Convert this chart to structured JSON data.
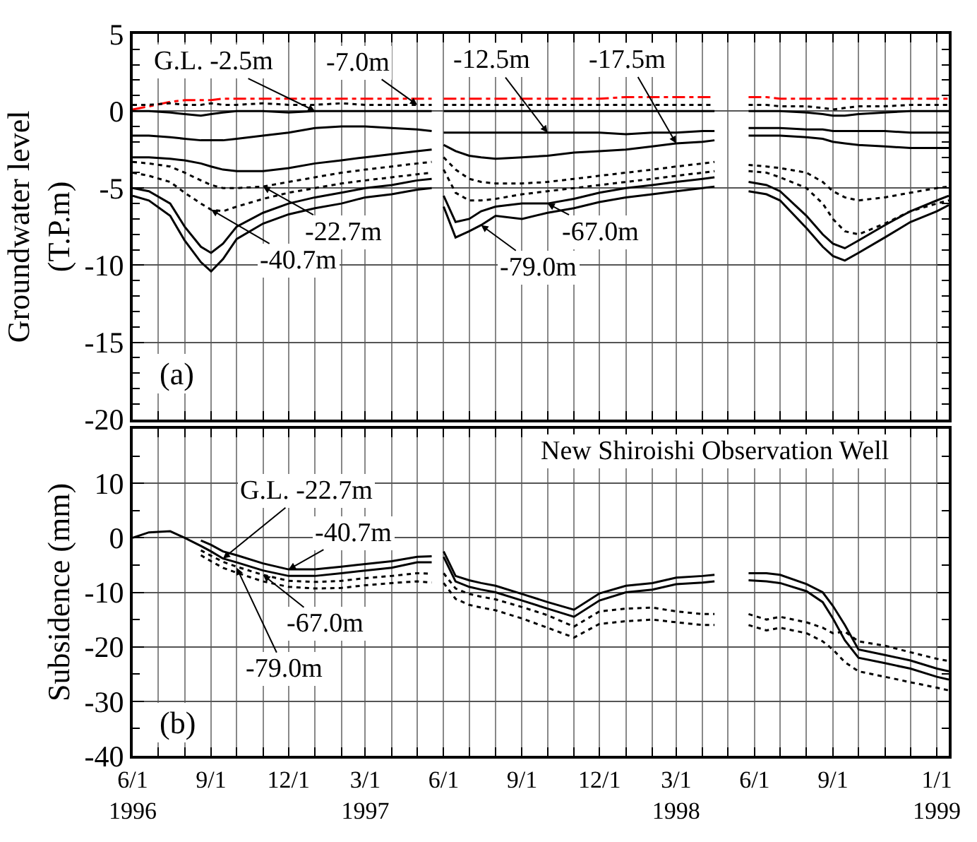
{
  "chart_data": [
    {
      "type": "line",
      "ylabel": "Groundwater level\n(T.P.m)",
      "xlim": [
        "1996-06-01",
        "1999-01-15"
      ],
      "ylim": [
        -20,
        5
      ],
      "yticks": [
        -20,
        -15,
        -10,
        -5,
        0,
        5
      ],
      "grid": true,
      "tick_labels": "y",
      "xticks": [
        {
          "value": "1996-06-01",
          "label": null
        },
        {
          "value": "1996-07-01",
          "label": null
        },
        {
          "value": "1996-08-01",
          "label": null
        },
        {
          "value": "1996-09-01",
          "label": null
        },
        {
          "value": "1996-10-01",
          "label": null
        },
        {
          "value": "1996-11-01",
          "label": null
        },
        {
          "value": "1996-12-01",
          "label": null
        },
        {
          "value": "1997-01-01",
          "label": null
        },
        {
          "value": "1997-02-01",
          "label": null
        },
        {
          "value": "1997-03-01",
          "label": null
        },
        {
          "value": "1997-04-01",
          "label": null
        },
        {
          "value": "1997-05-01",
          "label": null
        },
        {
          "value": "1997-06-01",
          "label": null
        },
        {
          "value": "1997-07-01",
          "label": null
        },
        {
          "value": "1997-08-01",
          "label": null
        },
        {
          "value": "1997-09-01",
          "label": null
        },
        {
          "value": "1997-10-01",
          "label": null
        },
        {
          "value": "1997-11-01",
          "label": null
        },
        {
          "value": "1997-12-01",
          "label": null
        },
        {
          "value": "1998-01-01",
          "label": null
        },
        {
          "value": "1998-02-01",
          "label": null
        },
        {
          "value": "1998-03-01",
          "label": null
        },
        {
          "value": "1998-04-01",
          "label": null
        },
        {
          "value": "1998-05-01",
          "label": null
        },
        {
          "value": "1998-06-01",
          "label": null
        },
        {
          "value": "1998-07-01",
          "label": null
        },
        {
          "value": "1998-08-01",
          "label": null
        },
        {
          "value": "1998-09-01",
          "label": null
        },
        {
          "value": "1998-10-01",
          "label": null
        },
        {
          "value": "1998-11-01",
          "label": null
        },
        {
          "value": "1998-12-01",
          "label": null
        },
        {
          "value": "1999-01-01",
          "label": null
        }
      ],
      "x": [
        "1996-06-01",
        "1996-06-20",
        "1996-07-15",
        "1996-08-01",
        "1996-08-20",
        "1996-09-01",
        "1996-09-15",
        "1996-10-01",
        "1996-11-01",
        "1996-12-01",
        "1997-01-01",
        "1997-02-01",
        "1997-03-01",
        "1997-04-01",
        "1997-05-01",
        "1997-05-18",
        "1997-05-25",
        "1997-06-01",
        "1997-06-15",
        "1997-07-01",
        "1997-07-15",
        "1997-08-01",
        "1997-09-01",
        "1997-10-01",
        "1997-11-01",
        "1997-12-01",
        "1998-01-01",
        "1998-02-01",
        "1998-03-01",
        "1998-04-01",
        "1998-04-15",
        "1998-05-10",
        "1998-05-25",
        "1998-06-15",
        "1998-07-01",
        "1998-08-01",
        "1998-08-20",
        "1998-09-01",
        "1998-09-15",
        "1998-10-01",
        "1998-11-01",
        "1998-12-01",
        "1999-01-01",
        "1999-01-15"
      ],
      "series": [
        {
          "color": "#ff0000",
          "line_style": "dashed",
          "values": [
            0.1,
            0.3,
            0.6,
            0.7,
            0.7,
            0.7,
            0.8,
            0.8,
            0.8,
            0.8,
            0.8,
            0.8,
            0.8,
            0.8,
            0.8,
            0.8,
            null,
            0.8,
            0.8,
            0.8,
            0.8,
            0.8,
            0.8,
            0.8,
            0.8,
            0.8,
            0.9,
            0.9,
            0.9,
            0.9,
            0.9,
            null,
            0.9,
            0.9,
            0.8,
            0.8,
            0.8,
            0.8,
            0.8,
            0.8,
            0.8,
            0.8,
            0.8,
            0.8
          ]
        },
        {
          "color": "#000000",
          "line_style": "solid",
          "values": [
            0.0,
            0.0,
            -0.1,
            -0.2,
            -0.3,
            -0.2,
            -0.1,
            0.0,
            0.0,
            -0.1,
            0.0,
            0.0,
            0.0,
            0.0,
            0.0,
            0.0,
            null,
            0.0,
            0.0,
            0.0,
            0.0,
            0.0,
            0.0,
            0.0,
            0.0,
            0.0,
            0.0,
            0.0,
            0.0,
            0.0,
            0.0,
            null,
            0.0,
            0.0,
            0.0,
            -0.1,
            -0.2,
            -0.3,
            -0.3,
            -0.2,
            -0.1,
            0.0,
            0.0,
            0.0
          ]
        },
        {
          "color": "#000000",
          "line_style": "dotted",
          "values": [
            0.4,
            0.4,
            0.5,
            0.4,
            0.4,
            0.5,
            0.4,
            0.4,
            0.5,
            0.4,
            0.4,
            0.5,
            0.4,
            0.4,
            0.4,
            0.4,
            null,
            0.4,
            0.4,
            0.4,
            0.4,
            0.4,
            0.4,
            0.4,
            0.4,
            0.4,
            0.4,
            0.4,
            0.4,
            0.4,
            0.4,
            null,
            0.4,
            0.4,
            0.3,
            0.3,
            0.2,
            0.1,
            0.2,
            0.3,
            0.3,
            0.4,
            0.4,
            0.4
          ]
        },
        {
          "color": "#000000",
          "line_style": "solid",
          "values": [
            -1.6,
            -1.6,
            -1.7,
            -1.8,
            -1.9,
            -1.9,
            -1.9,
            -1.8,
            -1.6,
            -1.4,
            -1.1,
            -1.0,
            -1.0,
            -1.1,
            -1.2,
            -1.3,
            null,
            -1.4,
            -1.4,
            -1.4,
            -1.4,
            -1.4,
            -1.4,
            -1.4,
            -1.4,
            -1.4,
            -1.5,
            -1.4,
            -1.4,
            -1.3,
            -1.3,
            null,
            -1.1,
            -1.1,
            -1.1,
            -1.2,
            -1.2,
            -1.3,
            -1.3,
            -1.3,
            -1.3,
            -1.4,
            -1.4,
            -1.4
          ]
        },
        {
          "color": "#000000",
          "line_style": "solid",
          "values": [
            -3.0,
            -3.0,
            -3.1,
            -3.2,
            -3.4,
            -3.6,
            -3.8,
            -3.9,
            -3.9,
            -3.7,
            -3.4,
            -3.2,
            -3.0,
            -2.8,
            -2.6,
            -2.5,
            null,
            -2.2,
            -2.6,
            -2.9,
            -3.0,
            -3.1,
            -3.0,
            -2.9,
            -2.7,
            -2.6,
            -2.5,
            -2.3,
            -2.1,
            -2.0,
            -1.9,
            null,
            -1.6,
            -1.6,
            -1.6,
            -1.7,
            -1.8,
            -2.0,
            -2.1,
            -2.2,
            -2.3,
            -2.4,
            -2.4,
            -2.4
          ]
        },
        {
          "color": "#000000",
          "line_style": "dotted",
          "values": [
            -3.3,
            -3.4,
            -3.6,
            -4.0,
            -4.5,
            -4.8,
            -5.0,
            -5.0,
            -4.9,
            -4.6,
            -4.3,
            -4.0,
            -3.8,
            -3.6,
            -3.4,
            -3.3,
            null,
            -3.0,
            -3.8,
            -4.4,
            -4.6,
            -4.7,
            -4.7,
            -4.6,
            -4.4,
            -4.2,
            -4.0,
            -3.8,
            -3.6,
            -3.4,
            -3.3,
            null,
            -3.5,
            -3.6,
            -3.7,
            -4.0,
            -4.6,
            -5.2,
            -5.6,
            -5.8,
            -5.6,
            -5.3,
            -5.0,
            -4.9
          ]
        },
        {
          "color": "#000000",
          "line_style": "dotted",
          "values": [
            -4.0,
            -4.2,
            -4.6,
            -5.3,
            -6.0,
            -6.4,
            -6.5,
            -6.2,
            -5.7,
            -5.3,
            -5.0,
            -4.7,
            -4.5,
            -4.3,
            -4.1,
            -4.0,
            null,
            -3.8,
            -5.3,
            -5.8,
            -5.8,
            -5.7,
            -5.4,
            -5.2,
            -5.0,
            -4.8,
            -4.6,
            -4.4,
            -4.2,
            -4.0,
            -3.9,
            null,
            -3.9,
            -4.0,
            -4.3,
            -5.0,
            -6.0,
            -7.0,
            -7.8,
            -8.0,
            -7.3,
            -6.5,
            -6.0,
            -5.8
          ]
        },
        {
          "color": "#000000",
          "line_style": "solid",
          "values": [
            -5.0,
            -5.2,
            -6.0,
            -7.5,
            -8.8,
            -9.2,
            -8.6,
            -7.5,
            -6.6,
            -6.0,
            -5.6,
            -5.3,
            -5.0,
            -4.8,
            -4.5,
            -4.4,
            null,
            -5.5,
            -7.2,
            -7.0,
            -6.5,
            -6.2,
            -6.0,
            -6.0,
            -5.7,
            -5.3,
            -5.0,
            -4.8,
            -4.6,
            -4.4,
            -4.3,
            null,
            -4.6,
            -4.8,
            -5.2,
            -6.8,
            -8.0,
            -8.6,
            -8.9,
            -8.4,
            -7.4,
            -6.5,
            -5.8,
            -5.5
          ]
        },
        {
          "color": "#000000",
          "line_style": "solid",
          "values": [
            -5.5,
            -5.8,
            -6.8,
            -8.4,
            -9.8,
            -10.4,
            -9.6,
            -8.3,
            -7.3,
            -6.7,
            -6.3,
            -6.0,
            -5.6,
            -5.4,
            -5.1,
            -5.0,
            null,
            -6.2,
            -8.2,
            -7.8,
            -7.4,
            -6.8,
            -7.0,
            -6.6,
            -6.3,
            -5.9,
            -5.6,
            -5.4,
            -5.2,
            -5.0,
            -4.9,
            null,
            -5.2,
            -5.4,
            -5.8,
            -7.6,
            -8.8,
            -9.4,
            -9.7,
            -9.2,
            -8.2,
            -7.2,
            -6.5,
            -6.1
          ]
        }
      ],
      "annotations": [
        {
          "text": "G.L. -2.5m",
          "x": "1997-01-01",
          "y": 0.0
        },
        {
          "text": "-7.0m",
          "x": "1997-05-01",
          "y": 0.4
        },
        {
          "text": "-12.5m",
          "x": "1997-10-01",
          "y": -1.4
        },
        {
          "text": "-17.5m",
          "x": "1998-03-01",
          "y": -2.1
        },
        {
          "text": "-22.7m",
          "x": "1996-11-01",
          "y": -4.9
        },
        {
          "text": "-40.7m",
          "x": "1996-09-01",
          "y": -6.4
        },
        {
          "text": "-67.0m",
          "x": "1997-10-01",
          "y": -6.0
        },
        {
          "text": "-79.0m",
          "x": "1997-07-15",
          "y": -7.4
        },
        "(a)"
      ]
    },
    {
      "type": "line",
      "ylabel": "Subsidence (mm)",
      "xlim": [
        "1996-06-01",
        "1999-01-15"
      ],
      "ylim": [
        -40,
        20
      ],
      "yticks": [
        -40,
        -30,
        -20,
        -10,
        0,
        10,
        {
          "value": 20,
          "label": null
        }
      ],
      "grid": true,
      "xticks": [
        {
          "value": "1996-06-01",
          "label": "6/1\n1996"
        },
        {
          "value": "1996-07-01",
          "label": null
        },
        {
          "value": "1996-08-01",
          "label": null
        },
        {
          "value": "1996-09-01",
          "label": "9/1"
        },
        {
          "value": "1996-10-01",
          "label": null
        },
        {
          "value": "1996-11-01",
          "label": null
        },
        {
          "value": "1996-12-01",
          "label": "12/1"
        },
        {
          "value": "1997-01-01",
          "label": null
        },
        {
          "value": "1997-02-01",
          "label": null
        },
        {
          "value": "1997-03-01",
          "label": "3/1\n1997"
        },
        {
          "value": "1997-04-01",
          "label": null
        },
        {
          "value": "1997-05-01",
          "label": null
        },
        {
          "value": "1997-06-01",
          "label": "6/1"
        },
        {
          "value": "1997-07-01",
          "label": null
        },
        {
          "value": "1997-08-01",
          "label": null
        },
        {
          "value": "1997-09-01",
          "label": "9/1"
        },
        {
          "value": "1997-10-01",
          "label": null
        },
        {
          "value": "1997-11-01",
          "label": null
        },
        {
          "value": "1997-12-01",
          "label": "12/1"
        },
        {
          "value": "1998-01-01",
          "label": null
        },
        {
          "value": "1998-02-01",
          "label": null
        },
        {
          "value": "1998-03-01",
          "label": "3/1\n1998"
        },
        {
          "value": "1998-04-01",
          "label": null
        },
        {
          "value": "1998-05-01",
          "label": null
        },
        {
          "value": "1998-06-01",
          "label": "6/1"
        },
        {
          "value": "1998-07-01",
          "label": null
        },
        {
          "value": "1998-08-01",
          "label": null
        },
        {
          "value": "1998-09-01",
          "label": "9/1"
        },
        {
          "value": "1998-10-01",
          "label": null
        },
        {
          "value": "1998-11-01",
          "label": null
        },
        {
          "value": "1998-12-01",
          "label": null
        },
        {
          "value": "1999-01-01",
          "label": "1/1\n1999"
        }
      ],
      "x": [
        "1996-06-01",
        "1996-06-20",
        "1996-07-15",
        "1996-08-01",
        "1996-08-20",
        "1996-09-01",
        "1996-09-15",
        "1996-10-01",
        "1996-11-01",
        "1996-12-01",
        "1997-01-01",
        "1997-02-01",
        "1997-03-01",
        "1997-04-01",
        "1997-05-01",
        "1997-05-18",
        "1997-05-25",
        "1997-06-01",
        "1997-06-15",
        "1997-07-01",
        "1997-07-15",
        "1997-08-01",
        "1997-09-01",
        "1997-10-01",
        "1997-11-01",
        "1997-12-01",
        "1998-01-01",
        "1998-02-01",
        "1998-03-01",
        "1998-04-01",
        "1998-04-15",
        "1998-05-10",
        "1998-05-25",
        "1998-06-15",
        "1998-07-01",
        "1998-08-01",
        "1998-08-20",
        "1998-09-01",
        "1998-09-15",
        "1998-10-01",
        "1998-11-01",
        "1998-12-01",
        "1999-01-01",
        "1999-01-15"
      ],
      "series": [
        {
          "color": "#000000",
          "line_style": "solid",
          "values": [
            0,
            1.0,
            1.2,
            0.0,
            -1.5,
            -2.5,
            -3.8,
            -4.5,
            -6.0,
            -7.0,
            -7.0,
            -6.5,
            -6.0,
            -5.5,
            -4.5,
            -4.5,
            null,
            -3.5,
            -8.0,
            -9.0,
            -9.5,
            -10.0,
            -11.5,
            -13.0,
            -14.5,
            -11.5,
            -10.0,
            -9.5,
            -8.5,
            -8.2,
            -8.0,
            null,
            -6.5,
            -6.5,
            -6.8,
            -8.5,
            -10.0,
            -12.5,
            -16.0,
            -20.5,
            -21.5,
            -22.5,
            -24.0,
            -24.5
          ]
        },
        {
          "color": "#000000",
          "line_style": "solid",
          "values": [
            null,
            null,
            null,
            null,
            -0.5,
            -1.3,
            -2.5,
            -3.2,
            -4.7,
            -5.8,
            -5.8,
            -5.3,
            -4.8,
            -4.3,
            -3.5,
            -3.4,
            null,
            -2.5,
            -7.0,
            -7.8,
            -8.3,
            -8.8,
            -10.3,
            -11.8,
            -13.2,
            -10.2,
            -8.8,
            -8.3,
            -7.3,
            -7.0,
            -6.8,
            null,
            -7.8,
            -8.0,
            -8.3,
            -9.8,
            -11.8,
            -14.8,
            -18.8,
            -22.0,
            -23.0,
            -24.0,
            -25.5,
            -26.0
          ]
        },
        {
          "color": "#000000",
          "line_style": "dotted",
          "values": [
            null,
            null,
            null,
            null,
            -2.3,
            -3.3,
            -4.4,
            -5.3,
            -6.8,
            -7.9,
            -8.1,
            -7.9,
            -7.4,
            -7.0,
            -6.5,
            -6.6,
            null,
            -6.5,
            -9.3,
            -10.3,
            -10.8,
            -11.3,
            -12.7,
            -14.2,
            -16.3,
            -13.5,
            -13.0,
            -12.8,
            -13.5,
            -14.0,
            -14.0,
            null,
            -14.0,
            -15.0,
            -14.5,
            -15.5,
            -16.5,
            -17.5,
            -17.2,
            -19.0,
            -19.8,
            -21.0,
            -22.2,
            -22.6
          ]
        },
        {
          "color": "#000000",
          "line_style": "dotted",
          "values": [
            null,
            null,
            null,
            null,
            -3.2,
            -4.3,
            -5.5,
            -6.4,
            -8.0,
            -9.0,
            -9.3,
            -9.2,
            -8.7,
            -8.3,
            -8.0,
            -8.2,
            null,
            -8.3,
            -11.2,
            -12.3,
            -12.8,
            -13.3,
            -14.8,
            -16.5,
            -18.3,
            -15.8,
            -15.3,
            -15.0,
            -15.5,
            -16.0,
            -16.0,
            null,
            -16.0,
            -17.0,
            -16.5,
            -17.5,
            -19.0,
            -20.5,
            -22.8,
            -24.5,
            -25.5,
            -26.5,
            -27.5,
            -28.0
          ]
        }
      ],
      "annotations": [
        {
          "text": "G.L. -22.7m",
          "x": "1996-09-15",
          "y": -3.8
        },
        {
          "text": "-40.7m",
          "x": "1996-12-01",
          "y": -5.8
        },
        {
          "text": "-67.0m",
          "x": "1996-11-01",
          "y": -6.8
        },
        {
          "text": "-79.0m",
          "x": "1996-10-01",
          "y": -5.5
        },
        "New Shiroishi Observation Well",
        "(b)"
      ]
    }
  ]
}
